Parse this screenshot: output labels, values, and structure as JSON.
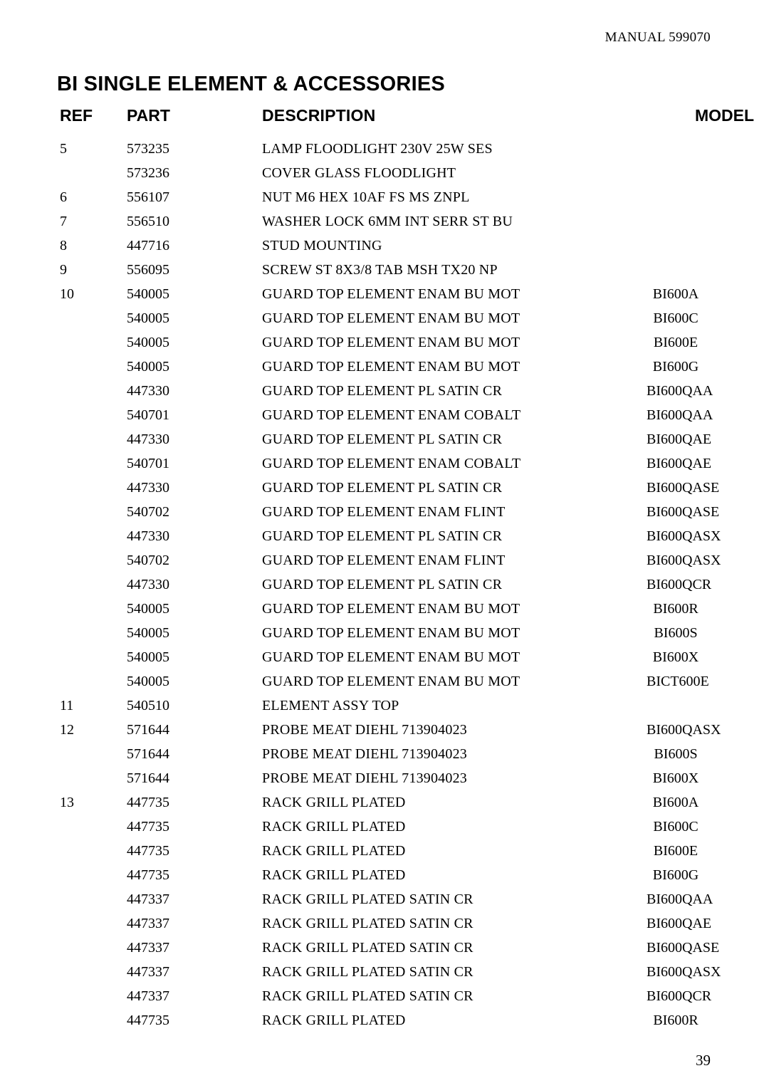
{
  "manual": "MANUAL 599070",
  "title": "BI SINGLE ELEMENT & ACCESSORIES",
  "headers": {
    "ref": "REF",
    "part": "PART",
    "desc": "DESCRIPTION",
    "model": "MODEL"
  },
  "page_number": "39",
  "rows": [
    {
      "ref": "5",
      "part": "573235",
      "desc": "LAMP FLOODLIGHT 230V 25W SES",
      "model": ""
    },
    {
      "ref": "",
      "part": "573236",
      "desc": "COVER GLASS FLOODLIGHT",
      "model": ""
    },
    {
      "ref": "6",
      "part": "556107",
      "desc": "NUT M6 HEX 10AF FS MS ZNPL",
      "model": ""
    },
    {
      "ref": "7",
      "part": "556510",
      "desc": "WASHER LOCK 6MM INT SERR ST BU",
      "model": ""
    },
    {
      "ref": "8",
      "part": "447716",
      "desc": "STUD MOUNTING",
      "model": ""
    },
    {
      "ref": "9",
      "part": "556095",
      "desc": "SCREW ST 8X3/8 TAB MSH TX20 NP",
      "model": ""
    },
    {
      "ref": "10",
      "part": "540005",
      "desc": "GUARD TOP ELEMENT ENAM BU MOT",
      "model": "BI600A"
    },
    {
      "ref": "",
      "part": "540005",
      "desc": "GUARD TOP ELEMENT ENAM BU MOT",
      "model": "BI600C"
    },
    {
      "ref": "",
      "part": "540005",
      "desc": "GUARD TOP ELEMENT ENAM BU MOT",
      "model": "BI600E"
    },
    {
      "ref": "",
      "part": "540005",
      "desc": "GUARD TOP ELEMENT ENAM BU MOT",
      "model": "BI600G"
    },
    {
      "ref": "",
      "part": "447330",
      "desc": "GUARD TOP ELEMENT PL SATIN CR",
      "model": "BI600QAA"
    },
    {
      "ref": "",
      "part": "540701",
      "desc": "GUARD TOP ELEMENT ENAM COBALT",
      "model": "BI600QAA"
    },
    {
      "ref": "",
      "part": "447330",
      "desc": "GUARD TOP ELEMENT PL SATIN CR",
      "model": "BI600QAE"
    },
    {
      "ref": "",
      "part": "540701",
      "desc": "GUARD TOP ELEMENT ENAM COBALT",
      "model": "BI600QAE"
    },
    {
      "ref": "",
      "part": "447330",
      "desc": "GUARD TOP ELEMENT PL SATIN CR",
      "model": "BI600QASE"
    },
    {
      "ref": "",
      "part": "540702",
      "desc": "GUARD TOP ELEMENT ENAM FLINT",
      "model": "BI600QASE"
    },
    {
      "ref": "",
      "part": "447330",
      "desc": "GUARD TOP ELEMENT PL SATIN CR",
      "model": "BI600QASX"
    },
    {
      "ref": "",
      "part": "540702",
      "desc": "GUARD TOP ELEMENT ENAM FLINT",
      "model": "BI600QASX"
    },
    {
      "ref": "",
      "part": "447330",
      "desc": "GUARD TOP ELEMENT PL SATIN CR",
      "model": "BI600QCR"
    },
    {
      "ref": "",
      "part": "540005",
      "desc": "GUARD TOP ELEMENT ENAM BU MOT",
      "model": "BI600R"
    },
    {
      "ref": "",
      "part": "540005",
      "desc": "GUARD TOP ELEMENT ENAM BU MOT",
      "model": "BI600S"
    },
    {
      "ref": "",
      "part": "540005",
      "desc": "GUARD TOP ELEMENT ENAM BU MOT",
      "model": "BI600X"
    },
    {
      "ref": "",
      "part": "540005",
      "desc": "GUARD TOP ELEMENT ENAM BU MOT",
      "model": "BICT600E"
    },
    {
      "ref": "11",
      "part": "540510",
      "desc": "ELEMENT ASSY TOP",
      "model": ""
    },
    {
      "ref": "12",
      "part": "571644",
      "desc": "PROBE MEAT DIEHL 713904023",
      "model": "BI600QASX"
    },
    {
      "ref": "",
      "part": "571644",
      "desc": "PROBE MEAT DIEHL 713904023",
      "model": "BI600S"
    },
    {
      "ref": "",
      "part": "571644",
      "desc": "PROBE MEAT DIEHL 713904023",
      "model": "BI600X"
    },
    {
      "ref": "13",
      "part": "447735",
      "desc": "RACK GRILL PLATED",
      "model": "BI600A"
    },
    {
      "ref": "",
      "part": "447735",
      "desc": "RACK GRILL PLATED",
      "model": "BI600C"
    },
    {
      "ref": "",
      "part": "447735",
      "desc": "RACK GRILL PLATED",
      "model": "BI600E"
    },
    {
      "ref": "",
      "part": "447735",
      "desc": "RACK GRILL PLATED",
      "model": "BI600G"
    },
    {
      "ref": "",
      "part": "447337",
      "desc": "RACK GRILL PLATED SATIN CR",
      "model": "BI600QAA"
    },
    {
      "ref": "",
      "part": "447337",
      "desc": "RACK GRILL PLATED SATIN CR",
      "model": "BI600QAE"
    },
    {
      "ref": "",
      "part": "447337",
      "desc": "RACK GRILL PLATED SATIN CR",
      "model": "BI600QASE"
    },
    {
      "ref": "",
      "part": "447337",
      "desc": "RACK GRILL PLATED SATIN CR",
      "model": "BI600QASX"
    },
    {
      "ref": "",
      "part": "447337",
      "desc": "RACK GRILL PLATED SATIN CR",
      "model": "BI600QCR"
    },
    {
      "ref": "",
      "part": "447735",
      "desc": "RACK GRILL PLATED",
      "model": "BI600R"
    }
  ]
}
